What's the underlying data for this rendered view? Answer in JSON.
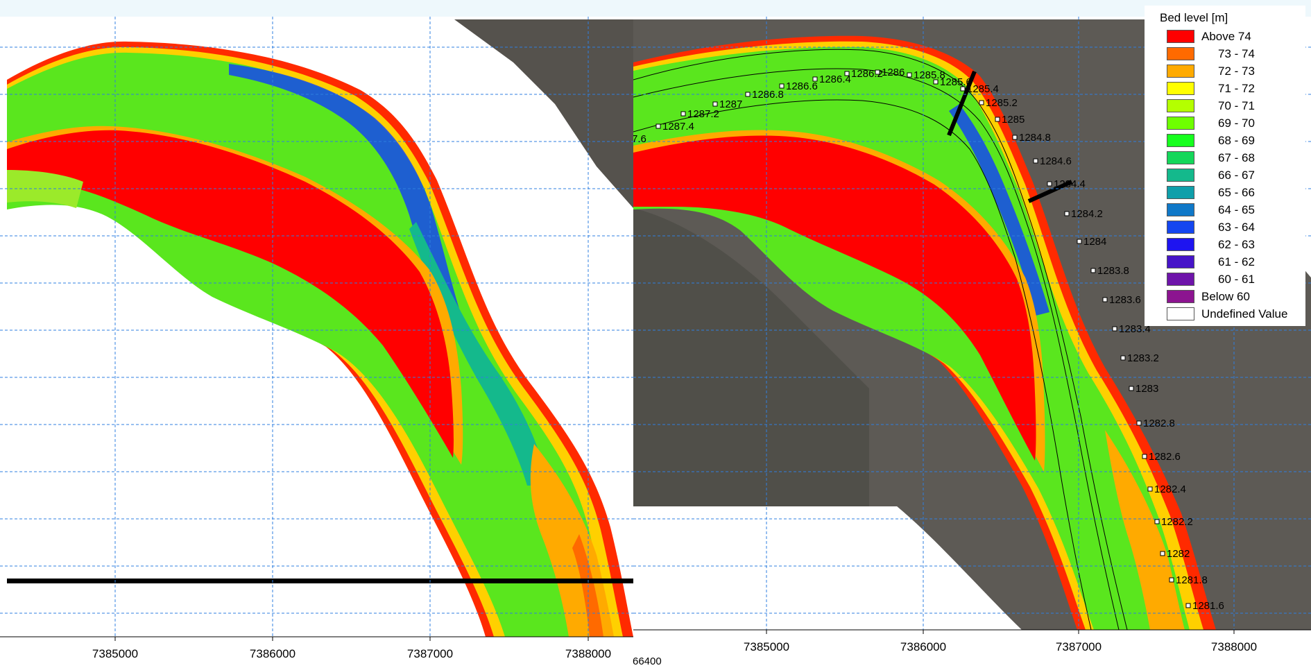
{
  "left_map": {
    "x_ticks": [
      "7385000",
      "7386000",
      "7387000",
      "7388000"
    ]
  },
  "right_map": {
    "x_ticks": [
      "7385000",
      "7386000",
      "7387000",
      "7388000"
    ],
    "chainage_labels": [
      "7.6",
      "1287.4",
      "1287.2",
      "1287",
      "1286.8",
      "1286.6",
      "1286.4",
      "1286.2",
      "1286",
      "1285.8",
      "1285.6",
      "1285.4",
      "1285.2",
      "1285",
      "1284.8",
      "1284.6",
      "1284.4",
      "1284.2",
      "1284",
      "1283.8",
      "1283.6",
      "1283.4",
      "1283.2",
      "1283",
      "1282.8",
      "1282.6",
      "1282.4",
      "1282.2",
      "1282",
      "1281.8",
      "1281.6"
    ],
    "stray_label": "66400"
  },
  "legend": {
    "title": "Bed level [m]",
    "items": [
      {
        "label": "Above 74",
        "color": "#ff0000"
      },
      {
        "label": "73 - 74",
        "color": "#ff6a00"
      },
      {
        "label": "72 - 73",
        "color": "#ffaa00"
      },
      {
        "label": "71 - 72",
        "color": "#ffff00"
      },
      {
        "label": "70 - 71",
        "color": "#b4ff00"
      },
      {
        "label": "69 - 70",
        "color": "#6eff00"
      },
      {
        "label": "68 - 69",
        "color": "#16ff1e"
      },
      {
        "label": "67 - 68",
        "color": "#14d75a"
      },
      {
        "label": "66 - 67",
        "color": "#14b98c"
      },
      {
        "label": "65 - 66",
        "color": "#0f9faa"
      },
      {
        "label": "64 - 65",
        "color": "#0f78c8"
      },
      {
        "label": "63 - 64",
        "color": "#1446f0"
      },
      {
        "label": "62 - 63",
        "color": "#1e14f0"
      },
      {
        "label": "61 - 62",
        "color": "#4614c8"
      },
      {
        "label": "60 - 61",
        "color": "#6e14aa"
      },
      {
        "label": "Below 60",
        "color": "#8c1490"
      },
      {
        "label": "Undefined Value",
        "color": "#ffffff"
      }
    ]
  }
}
